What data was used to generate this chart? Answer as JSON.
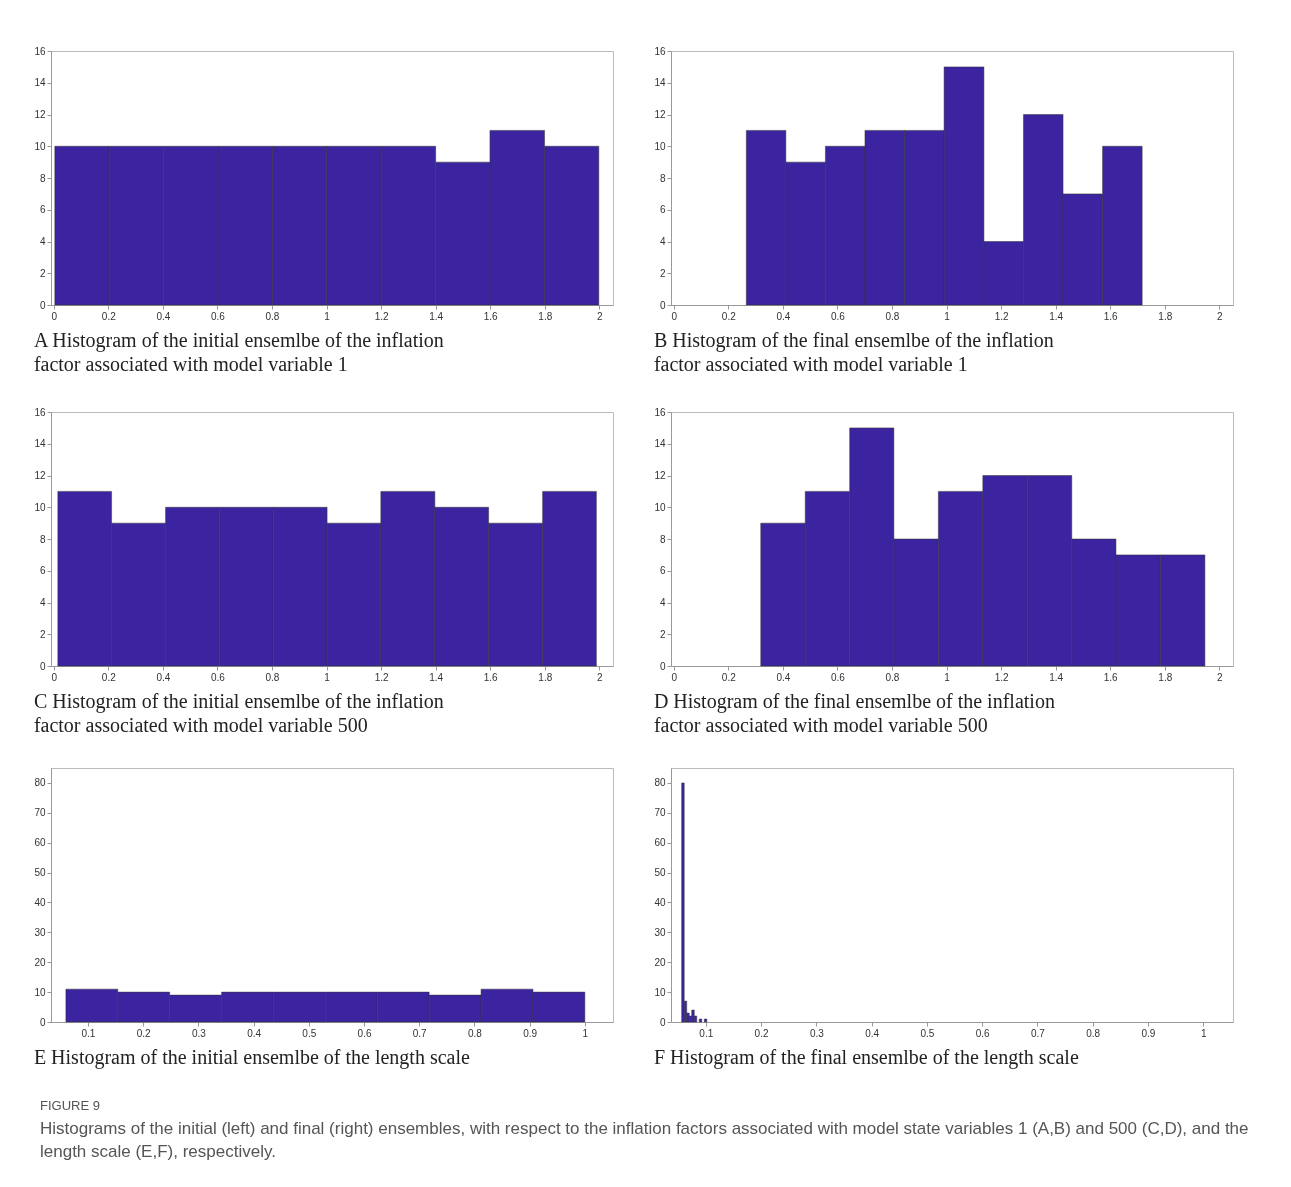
{
  "chart_data": [
    {
      "type": "histogram",
      "title": "A Histogram of the initial ensemlbe of the inflation factor associated with model variable 1",
      "bins": [
        0.004,
        0.203,
        0.403,
        0.602,
        0.802,
        1.001,
        1.2,
        1.4,
        1.599,
        1.799,
        1.998
      ],
      "values": [
        10,
        10,
        10,
        10,
        10,
        10,
        10,
        9,
        11,
        10
      ],
      "color": "#3c24a0",
      "xlim": [
        -0.01,
        2.05
      ],
      "xticks": [
        0,
        0.2,
        0.4,
        0.6,
        0.8,
        1,
        1.2,
        1.4,
        1.6,
        1.8,
        2
      ],
      "ylim": [
        0,
        16
      ],
      "yticks": [
        0,
        2,
        4,
        6,
        8,
        10,
        12,
        14,
        16
      ],
      "grid": false
    },
    {
      "type": "histogram",
      "title": "B Histogram of the final ensemlbe of the inflation factor associated with model variable 1",
      "bins": [
        0.266,
        0.411,
        0.556,
        0.701,
        0.846,
        0.991,
        1.137,
        1.282,
        1.427,
        1.572,
        1.717
      ],
      "values": [
        11,
        9,
        10,
        11,
        11,
        15,
        4,
        12,
        7,
        10
      ],
      "color": "#3c24a0",
      "xlim": [
        -0.01,
        2.05
      ],
      "xticks": [
        0,
        0.2,
        0.4,
        0.6,
        0.8,
        1,
        1.2,
        1.4,
        1.6,
        1.8,
        2
      ],
      "ylim": [
        0,
        16
      ],
      "yticks": [
        0,
        2,
        4,
        6,
        8,
        10,
        12,
        14,
        16
      ],
      "grid": false
    },
    {
      "type": "histogram",
      "title": "C Histogram of the initial ensemlbe of the inflation factor associated with model variable 500",
      "bins": [
        0.015,
        0.212,
        0.41,
        0.607,
        0.805,
        1.002,
        1.199,
        1.397,
        1.594,
        1.792,
        1.989
      ],
      "values": [
        11,
        9,
        10,
        10,
        10,
        9,
        11,
        10,
        9,
        11
      ],
      "color": "#3c24a0",
      "xlim": [
        -0.01,
        2.05
      ],
      "xticks": [
        0,
        0.2,
        0.4,
        0.6,
        0.8,
        1,
        1.2,
        1.4,
        1.6,
        1.8,
        2
      ],
      "ylim": [
        0,
        16
      ],
      "yticks": [
        0,
        2,
        4,
        6,
        8,
        10,
        12,
        14,
        16
      ],
      "grid": false
    },
    {
      "type": "histogram",
      "title": "D Histogram of the final ensemlbe of the inflation factor associated with model variable 500",
      "bins": [
        0.319,
        0.482,
        0.645,
        0.807,
        0.97,
        1.133,
        1.296,
        1.459,
        1.621,
        1.784,
        1.947
      ],
      "values": [
        9,
        11,
        15,
        8,
        11,
        12,
        12,
        8,
        7,
        7
      ],
      "color": "#3c24a0",
      "xlim": [
        -0.01,
        2.05
      ],
      "xticks": [
        0,
        0.2,
        0.4,
        0.6,
        0.8,
        1,
        1.2,
        1.4,
        1.6,
        1.8,
        2
      ],
      "ylim": [
        0,
        16
      ],
      "yticks": [
        0,
        2,
        4,
        6,
        8,
        10,
        12,
        14,
        16
      ],
      "grid": false
    },
    {
      "type": "histogram",
      "title": "E Histogram of the initial ensemlbe of the length scale",
      "bins": [
        0.06,
        0.154,
        0.248,
        0.342,
        0.436,
        0.53,
        0.624,
        0.718,
        0.812,
        0.906,
        1.0
      ],
      "values": [
        11,
        10,
        9,
        10,
        10,
        10,
        10,
        9,
        11,
        10
      ],
      "color": "#3c24a0",
      "xlim": [
        0.033,
        1.051
      ],
      "xticks": [
        0.1,
        0.2,
        0.3,
        0.4,
        0.5,
        0.6,
        0.7,
        0.8,
        0.9,
        1
      ],
      "ylim": [
        0,
        85
      ],
      "yticks": [
        0,
        10,
        20,
        30,
        40,
        50,
        60,
        70,
        80
      ],
      "grid": false
    },
    {
      "type": "histogram",
      "title": "F Histogram of the final ensemlbe of the length scale",
      "bins": [
        0.0563,
        0.0609,
        0.0654,
        0.07,
        0.0745,
        0.0791,
        0.0836,
        0.0882,
        0.0927,
        0.0973,
        0.1018
      ],
      "values": [
        80,
        7,
        3,
        2,
        4,
        2,
        0,
        1,
        0,
        1
      ],
      "color": "#3c24a0",
      "xlim": [
        0.037,
        1.054
      ],
      "xticks": [
        0.1,
        0.2,
        0.3,
        0.4,
        0.5,
        0.6,
        0.7,
        0.8,
        0.9,
        1
      ],
      "ylim": [
        0,
        85
      ],
      "yticks": [
        0,
        10,
        20,
        30,
        40,
        50,
        60,
        70,
        80
      ],
      "grid": false,
      "annotations": [
        "FIGURE 9",
        "Histograms of the initial (left) and final (right) ensembles, with respect to the inflation factors associated with model state variables 1 (A,B) and 500 (C,D), and the length scale (E,F), respectively."
      ]
    }
  ]
}
